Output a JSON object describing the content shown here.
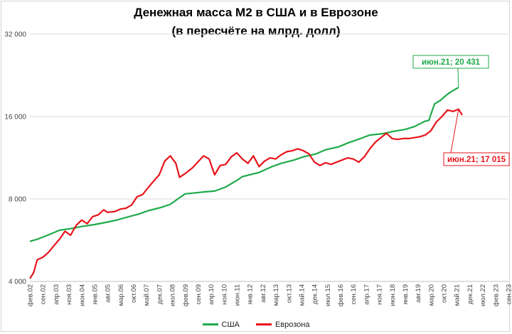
{
  "chart_data": {
    "type": "line",
    "title": "Денежная масса М2 в США и в Еврозоне",
    "subtitle": "(в пересчёте на млрд. долл)",
    "y_scale": "log2",
    "ylim": [
      4000,
      32000
    ],
    "y_ticks": [
      4000,
      8000,
      16000,
      32000
    ],
    "y_tick_labels": [
      "4 000",
      "8 000",
      "16 000",
      "32 000"
    ],
    "x_range": [
      "2002-02",
      "2023-09"
    ],
    "x_tick_labels": [
      "фев.02",
      "сен.02",
      "апр.03",
      "ноя.03",
      "июн.04",
      "янв.05",
      "авг.05",
      "мар.06",
      "окт.06",
      "май.07",
      "дек.07",
      "июл.08",
      "фев.09",
      "сен.09",
      "апр.10",
      "ноя.10",
      "июн.11",
      "янв.12",
      "авг.12",
      "мар.13",
      "окт.13",
      "май.14",
      "дек.14",
      "июл.15",
      "фев.16",
      "сен.16",
      "апр.17",
      "ноя.17",
      "июн.18",
      "янв.19",
      "авг.19",
      "мар.20",
      "окт.20",
      "май.21",
      "дек.21",
      "июл.22",
      "фев.23",
      "сен.23"
    ],
    "series": [
      {
        "name": "США",
        "color": "#1faa4a",
        "points": [
          [
            "2002-02",
            5600
          ],
          [
            "2002-06",
            5700
          ],
          [
            "2003-01",
            5950
          ],
          [
            "2003-06",
            6150
          ],
          [
            "2004-01",
            6250
          ],
          [
            "2004-06",
            6350
          ],
          [
            "2005-01",
            6450
          ],
          [
            "2005-06",
            6550
          ],
          [
            "2006-01",
            6700
          ],
          [
            "2006-06",
            6850
          ],
          [
            "2007-01",
            7050
          ],
          [
            "2007-06",
            7250
          ],
          [
            "2008-01",
            7450
          ],
          [
            "2008-06",
            7650
          ],
          [
            "2008-10",
            8000
          ],
          [
            "2009-02",
            8350
          ],
          [
            "2009-06",
            8400
          ],
          [
            "2010-01",
            8500
          ],
          [
            "2010-06",
            8550
          ],
          [
            "2010-12",
            8850
          ],
          [
            "2011-06",
            9350
          ],
          [
            "2011-09",
            9650
          ],
          [
            "2012-06",
            10000
          ],
          [
            "2013-01",
            10500
          ],
          [
            "2013-06",
            10800
          ],
          [
            "2014-01",
            11100
          ],
          [
            "2014-06",
            11400
          ],
          [
            "2015-01",
            11700
          ],
          [
            "2015-06",
            12100
          ],
          [
            "2016-01",
            12400
          ],
          [
            "2016-06",
            12800
          ],
          [
            "2017-01",
            13300
          ],
          [
            "2017-06",
            13700
          ],
          [
            "2018-01",
            13850
          ],
          [
            "2018-06",
            14100
          ],
          [
            "2019-01",
            14350
          ],
          [
            "2019-06",
            14700
          ],
          [
            "2019-12",
            15400
          ],
          [
            "2020-02",
            15500
          ],
          [
            "2020-03",
            16300
          ],
          [
            "2020-05",
            17800
          ],
          [
            "2020-08",
            18300
          ],
          [
            "2020-12",
            19300
          ],
          [
            "2021-03",
            19900
          ],
          [
            "2021-06",
            20431
          ]
        ]
      },
      {
        "name": "Еврозона",
        "color": "#e8141b",
        "points": [
          [
            "2002-02",
            4100
          ],
          [
            "2002-04",
            4300
          ],
          [
            "2002-06",
            4800
          ],
          [
            "2002-09",
            4900
          ],
          [
            "2002-12",
            5100
          ],
          [
            "2003-03",
            5400
          ],
          [
            "2003-06",
            5700
          ],
          [
            "2003-09",
            6100
          ],
          [
            "2003-12",
            5900
          ],
          [
            "2004-03",
            6400
          ],
          [
            "2004-06",
            6700
          ],
          [
            "2004-09",
            6500
          ],
          [
            "2004-12",
            6900
          ],
          [
            "2005-03",
            7000
          ],
          [
            "2005-06",
            7300
          ],
          [
            "2005-08",
            7150
          ],
          [
            "2005-12",
            7200
          ],
          [
            "2006-03",
            7350
          ],
          [
            "2006-06",
            7400
          ],
          [
            "2006-09",
            7600
          ],
          [
            "2006-12",
            8150
          ],
          [
            "2007-03",
            8300
          ],
          [
            "2007-06",
            8800
          ],
          [
            "2007-09",
            9300
          ],
          [
            "2007-12",
            9800
          ],
          [
            "2008-03",
            11000
          ],
          [
            "2008-06",
            11500
          ],
          [
            "2008-09",
            10800
          ],
          [
            "2008-11",
            9600
          ],
          [
            "2009-02",
            9900
          ],
          [
            "2009-06",
            10400
          ],
          [
            "2009-12",
            11500
          ],
          [
            "2010-03",
            11200
          ],
          [
            "2010-06",
            9800
          ],
          [
            "2010-09",
            10600
          ],
          [
            "2010-12",
            10700
          ],
          [
            "2011-03",
            11400
          ],
          [
            "2011-06",
            11800
          ],
          [
            "2011-09",
            11200
          ],
          [
            "2011-12",
            10800
          ],
          [
            "2012-03",
            11500
          ],
          [
            "2012-06",
            10500
          ],
          [
            "2012-09",
            11000
          ],
          [
            "2012-12",
            11300
          ],
          [
            "2013-03",
            11200
          ],
          [
            "2013-06",
            11600
          ],
          [
            "2013-09",
            11900
          ],
          [
            "2013-12",
            12000
          ],
          [
            "2014-03",
            12200
          ],
          [
            "2014-06",
            12000
          ],
          [
            "2014-09",
            11700
          ],
          [
            "2014-12",
            10900
          ],
          [
            "2015-03",
            10600
          ],
          [
            "2015-06",
            10850
          ],
          [
            "2015-09",
            10700
          ],
          [
            "2015-12",
            10900
          ],
          [
            "2016-03",
            11100
          ],
          [
            "2016-06",
            11300
          ],
          [
            "2016-09",
            11200
          ],
          [
            "2016-12",
            10900
          ],
          [
            "2017-03",
            11400
          ],
          [
            "2017-06",
            12200
          ],
          [
            "2017-09",
            12900
          ],
          [
            "2017-12",
            13400
          ],
          [
            "2018-03",
            13900
          ],
          [
            "2018-06",
            13300
          ],
          [
            "2018-09",
            13200
          ],
          [
            "2018-12",
            13300
          ],
          [
            "2019-03",
            13300
          ],
          [
            "2019-06",
            13400
          ],
          [
            "2019-09",
            13500
          ],
          [
            "2019-12",
            13700
          ],
          [
            "2020-03",
            14200
          ],
          [
            "2020-06",
            15300
          ],
          [
            "2020-09",
            16000
          ],
          [
            "2020-12",
            16900
          ],
          [
            "2021-03",
            16700
          ],
          [
            "2021-06",
            17015
          ],
          [
            "2021-08",
            16200
          ]
        ]
      }
    ],
    "annotations": [
      {
        "series": "США",
        "x": "2021-06",
        "text": "июн.21;  20 431"
      },
      {
        "series": "Еврозона",
        "x": "2021-06",
        "text": "июн.21; 17 015"
      }
    ],
    "legend": [
      "США",
      "Еврозона"
    ],
    "legend_position": "bottom",
    "grid": "horizontal"
  }
}
